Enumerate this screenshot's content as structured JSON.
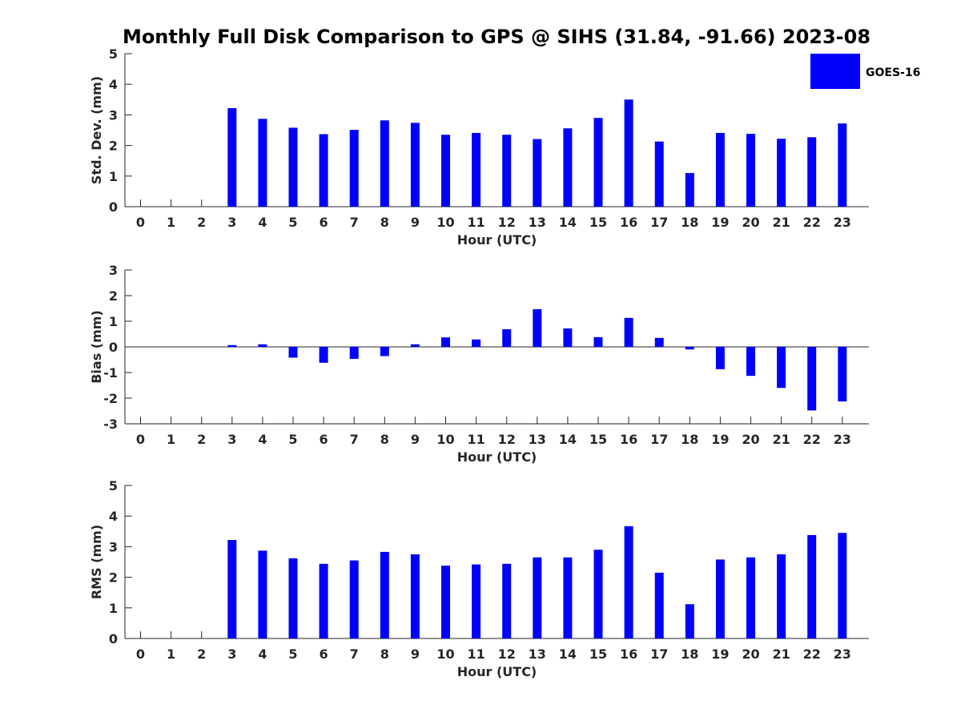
{
  "chart_data": {
    "title": "Monthly Full Disk Comparison to GPS @ SIHS (31.84, -91.66) 2023-08",
    "legend": {
      "label": "GOES-16",
      "placement": "top-right",
      "color": "#0000ff"
    },
    "bar_color": "#0000ff",
    "panels": [
      {
        "type": "bar",
        "ylabel": "Std. Dev. (mm)",
        "xlabel": "Hour (UTC)",
        "ylim": [
          0,
          5
        ],
        "yticks": [
          0,
          1,
          2,
          3,
          4,
          5
        ],
        "categories": [
          0,
          1,
          2,
          3,
          4,
          5,
          6,
          7,
          8,
          9,
          10,
          11,
          12,
          13,
          14,
          15,
          16,
          17,
          18,
          19,
          20,
          21,
          22,
          23
        ],
        "values": [
          null,
          null,
          null,
          3.22,
          2.87,
          2.58,
          2.37,
          2.51,
          2.82,
          2.74,
          2.35,
          2.41,
          2.35,
          2.21,
          2.56,
          2.9,
          3.5,
          2.13,
          1.1,
          2.41,
          2.38,
          2.22,
          2.27,
          2.72
        ]
      },
      {
        "type": "bar",
        "ylabel": "Bias (mm)",
        "xlabel": "Hour (UTC)",
        "ylim": [
          -3,
          3
        ],
        "yticks": [
          -3,
          -2,
          -1,
          0,
          1,
          2,
          3
        ],
        "categories": [
          0,
          1,
          2,
          3,
          4,
          5,
          6,
          7,
          8,
          9,
          10,
          11,
          12,
          13,
          14,
          15,
          16,
          17,
          18,
          19,
          20,
          21,
          22,
          23
        ],
        "values": [
          null,
          null,
          null,
          0.07,
          0.1,
          -0.42,
          -0.62,
          -0.47,
          -0.36,
          0.1,
          0.37,
          0.29,
          0.69,
          1.47,
          0.72,
          0.38,
          1.13,
          0.35,
          -0.1,
          -0.87,
          -1.13,
          -1.6,
          -2.48,
          -2.13
        ]
      },
      {
        "type": "bar",
        "ylabel": "RMS (mm)",
        "xlabel": "Hour (UTC)",
        "ylim": [
          0,
          5
        ],
        "yticks": [
          0,
          1,
          2,
          3,
          4,
          5
        ],
        "categories": [
          0,
          1,
          2,
          3,
          4,
          5,
          6,
          7,
          8,
          9,
          10,
          11,
          12,
          13,
          14,
          15,
          16,
          17,
          18,
          19,
          20,
          21,
          22,
          23
        ],
        "values": [
          null,
          null,
          null,
          3.22,
          2.87,
          2.62,
          2.44,
          2.55,
          2.83,
          2.75,
          2.38,
          2.42,
          2.44,
          2.65,
          2.65,
          2.9,
          3.67,
          2.15,
          1.12,
          2.58,
          2.65,
          2.75,
          3.38,
          3.45
        ]
      }
    ]
  }
}
